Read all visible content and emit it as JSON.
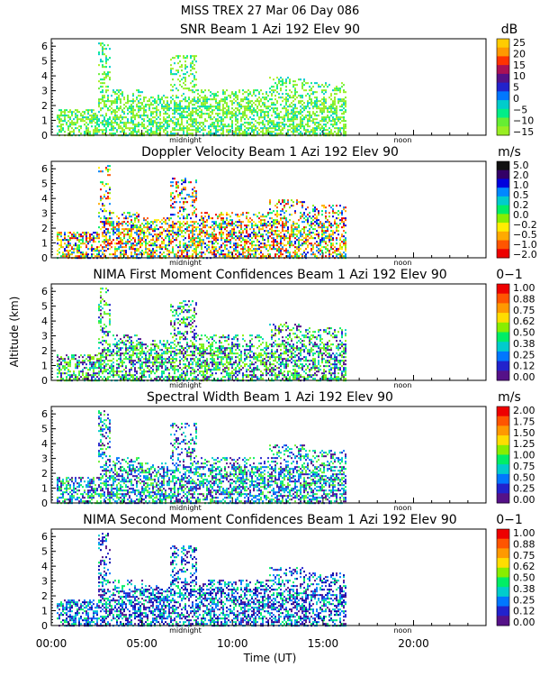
{
  "header": "MISS TREX    27 Mar 06 Day 086",
  "ylabel": "Altitude (km)",
  "xlabel": "Time (UT)",
  "xticks": [
    "00:00",
    "05:00",
    "10:00",
    "15:00",
    "20:00"
  ],
  "yticks": [
    "0",
    "1",
    "2",
    "3",
    "4",
    "5",
    "6"
  ],
  "markers": {
    "midnight": "midnight",
    "noon": "noon"
  },
  "chart_data": [
    {
      "type": "heatmap",
      "title": "SNR Beam 1 Azi 192 Elev 90",
      "unit": "dB",
      "xlim": [
        0,
        24
      ],
      "ylim": [
        0,
        6.5
      ],
      "colorbar_ticks": [
        "25",
        "20",
        "15",
        "10",
        "5",
        "0",
        "−5",
        "−10",
        "−15"
      ],
      "colors": [
        "#ffcc00",
        "#ff9900",
        "#ff3300",
        "#aa1155",
        "#551188",
        "#2222cc",
        "#0077ff",
        "#00cccc",
        "#00ee88",
        "#66ee33",
        "#99ee22"
      ],
      "palette": [
        "#99ee22",
        "#66ee33",
        "#88ee22",
        "#00ee88",
        "#aaee22",
        "#00cccc"
      ]
    },
    {
      "type": "heatmap",
      "title": "Doppler Velocity Beam 1 Azi 192 Elev 90",
      "unit": "m/s",
      "xlim": [
        0,
        24
      ],
      "ylim": [
        0,
        6.5
      ],
      "colorbar_ticks": [
        "5.0",
        "2.0",
        "1.0",
        "0.5",
        "0.2",
        "0.0",
        "−0.2",
        "−0.5",
        "−1.0",
        "−2.0"
      ],
      "colors": [
        "#111111",
        "#330066",
        "#0000dd",
        "#0088ff",
        "#00cccc",
        "#00ee66",
        "#88ee00",
        "#ffee00",
        "#ffaa00",
        "#ff5500",
        "#ee0000"
      ],
      "palette": [
        "#88ee00",
        "#00ee66",
        "#ffee00",
        "#ff5500",
        "#ee0000",
        "#ffaa00",
        "#0000dd",
        "#0088ff"
      ]
    },
    {
      "type": "heatmap",
      "title": "NIMA First Moment Confidences Beam 1 Azi 192 Elev 90",
      "unit": "0−1",
      "xlim": [
        0,
        24
      ],
      "ylim": [
        0,
        6.5
      ],
      "colorbar_ticks": [
        "1.00",
        "0.88",
        "0.75",
        "0.62",
        "0.50",
        "0.38",
        "0.25",
        "0.12",
        "0.00"
      ],
      "colors": [
        "#ee0000",
        "#ff5500",
        "#ff9900",
        "#ffdd00",
        "#88ee00",
        "#00ee66",
        "#00cccc",
        "#0077ff",
        "#2222cc",
        "#551188"
      ],
      "palette": [
        "#88ee00",
        "#00ee66",
        "#66ee33",
        "#00cccc",
        "#2222cc",
        "#551188"
      ]
    },
    {
      "type": "heatmap",
      "title": "Spectral Width Beam 1 Azi 192 Elev 90",
      "unit": "m/s",
      "xlim": [
        0,
        24
      ],
      "ylim": [
        0,
        6.5
      ],
      "colorbar_ticks": [
        "2.00",
        "1.75",
        "1.50",
        "1.25",
        "1.00",
        "0.75",
        "0.50",
        "0.25",
        "0.00"
      ],
      "colors": [
        "#ee0000",
        "#ff5500",
        "#ff9900",
        "#ffdd00",
        "#88ee00",
        "#00ee66",
        "#00cccc",
        "#0077ff",
        "#2222cc",
        "#551188"
      ],
      "palette": [
        "#00cccc",
        "#00ee66",
        "#0077ff",
        "#66ee33",
        "#2222cc",
        "#551188"
      ]
    },
    {
      "type": "heatmap",
      "title": "NIMA Second Moment Confidences Beam 1 Azi 192 Elev 90",
      "unit": "0−1",
      "xlim": [
        0,
        24
      ],
      "ylim": [
        0,
        6.5
      ],
      "colorbar_ticks": [
        "1.00",
        "0.88",
        "0.75",
        "0.62",
        "0.50",
        "0.38",
        "0.25",
        "0.12",
        "0.00"
      ],
      "colors": [
        "#ee0000",
        "#ff5500",
        "#ff9900",
        "#ffdd00",
        "#88ee00",
        "#00ee66",
        "#00cccc",
        "#0077ff",
        "#2222cc",
        "#551188"
      ],
      "palette": [
        "#2222cc",
        "#0077ff",
        "#00cccc",
        "#551188",
        "#00ee66",
        "#0000aa"
      ]
    }
  ]
}
